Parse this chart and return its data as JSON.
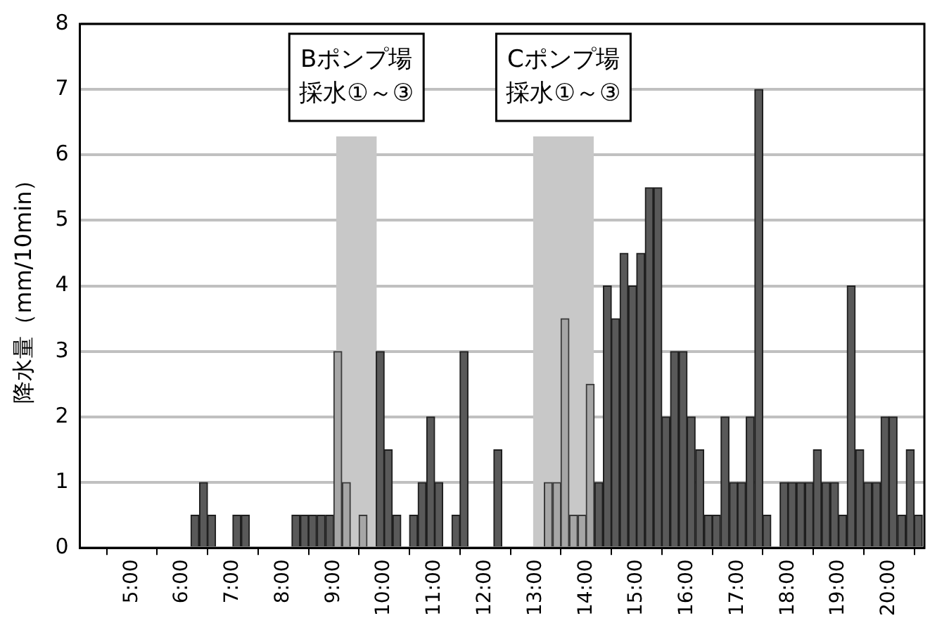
{
  "chart_data": {
    "type": "bar",
    "ylabel": "降水量（mm/10min）",
    "x": [
      4.08,
      4.25,
      4.42,
      4.58,
      4.75,
      4.92,
      5.08,
      5.25,
      5.42,
      5.58,
      5.75,
      5.92,
      6.08,
      6.25,
      6.42,
      6.58,
      6.75,
      6.92,
      7.08,
      7.25,
      7.42,
      7.58,
      7.75,
      7.92,
      8.08,
      8.25,
      8.42,
      8.58,
      8.75,
      8.92,
      9.08,
      9.25,
      9.42,
      9.58,
      9.75,
      9.92,
      10.08,
      10.25,
      10.42,
      10.58,
      10.75,
      10.92,
      11.08,
      11.25,
      11.42,
      11.58,
      11.75,
      11.92,
      12.08,
      12.25,
      12.42,
      12.58,
      12.75,
      12.92,
      13.08,
      13.25,
      13.42,
      13.58,
      13.75,
      13.92,
      14.08,
      14.25,
      14.42,
      14.58,
      14.75,
      14.92,
      15.08,
      15.25,
      15.42,
      15.58,
      15.75,
      15.92,
      16.08,
      16.25,
      16.42,
      16.58,
      16.75,
      16.92,
      17.08,
      17.25,
      17.42,
      17.58,
      17.75,
      17.92,
      18.08,
      18.25,
      18.42,
      18.58,
      18.75,
      18.92,
      19.08,
      19.25,
      19.42,
      19.58,
      19.75,
      19.92,
      20.08,
      20.25,
      20.42,
      20.58
    ],
    "values": [
      0,
      0,
      0,
      0,
      0,
      0,
      0,
      0,
      0,
      0,
      0,
      0,
      0,
      0.5,
      1,
      0.5,
      0,
      0,
      0.5,
      0.5,
      0,
      0,
      0,
      0,
      0,
      0.5,
      0.5,
      0.5,
      0.5,
      0.5,
      3,
      1,
      0,
      0.5,
      0,
      3,
      1.5,
      0.5,
      0,
      0.5,
      1,
      2,
      1,
      0,
      0.5,
      3,
      0,
      0,
      0,
      1.5,
      0,
      0,
      0,
      0,
      0,
      1,
      1,
      3.5,
      0.5,
      0.5,
      2.5,
      1,
      4,
      3.5,
      4.5,
      4,
      4.5,
      5.5,
      5.5,
      2,
      3,
      3,
      2,
      1.5,
      0.5,
      0.5,
      2,
      1,
      1,
      2,
      7,
      0.5,
      0,
      1,
      1,
      1,
      1,
      1.5,
      1,
      1,
      0.5,
      4,
      1.5,
      1,
      1,
      2,
      2,
      0.5,
      1.5,
      0.5
    ],
    "colors": [
      "#595959",
      "#595959",
      "#595959",
      "#595959",
      "#595959",
      "#595959",
      "#595959",
      "#595959",
      "#595959",
      "#595959",
      "#595959",
      "#595959",
      "#595959",
      "#595959",
      "#595959",
      "#595959",
      "#595959",
      "#595959",
      "#595959",
      "#595959",
      "#595959",
      "#595959",
      "#595959",
      "#595959",
      "#595959",
      "#595959",
      "#595959",
      "#595959",
      "#595959",
      "#595959",
      "#a6a6a6",
      "#a6a6a6",
      "#a6a6a6",
      "#a6a6a6",
      "#a6a6a6",
      "#595959",
      "#595959",
      "#595959",
      "#595959",
      "#595959",
      "#595959",
      "#595959",
      "#595959",
      "#595959",
      "#595959",
      "#595959",
      "#595959",
      "#595959",
      "#595959",
      "#595959",
      "#595959",
      "#595959",
      "#595959",
      "#595959",
      "#595959",
      "#a6a6a6",
      "#a6a6a6",
      "#a6a6a6",
      "#a6a6a6",
      "#a6a6a6",
      "#a6a6a6",
      "#595959",
      "#595959",
      "#595959",
      "#595959",
      "#595959",
      "#595959",
      "#595959",
      "#595959",
      "#595959",
      "#595959",
      "#595959",
      "#595959",
      "#595959",
      "#595959",
      "#595959",
      "#595959",
      "#595959",
      "#595959",
      "#595959",
      "#595959",
      "#595959",
      "#595959",
      "#595959",
      "#595959",
      "#595959",
      "#595959",
      "#595959",
      "#595959",
      "#595959",
      "#595959",
      "#595959",
      "#595959",
      "#595959",
      "#595959",
      "#595959",
      "#595959",
      "#595959",
      "#595959",
      "#595959"
    ],
    "xlim": [
      3.97,
      20.7
    ],
    "xticks": [
      {
        "value": 5,
        "label": "5:00"
      },
      {
        "value": 6,
        "label": "6:00"
      },
      {
        "value": 7,
        "label": "7:00"
      },
      {
        "value": 8,
        "label": "8:00"
      },
      {
        "value": 9,
        "label": "9:00"
      },
      {
        "value": 10,
        "label": "10:00"
      },
      {
        "value": 11,
        "label": "11:00"
      },
      {
        "value": 12,
        "label": "12:00"
      },
      {
        "value": 13,
        "label": "13:00"
      },
      {
        "value": 14,
        "label": "14:00"
      },
      {
        "value": 15,
        "label": "15:00"
      },
      {
        "value": 16,
        "label": "16:00"
      },
      {
        "value": 17,
        "label": "17:00"
      },
      {
        "value": 18,
        "label": "18:00"
      },
      {
        "value": 19,
        "label": "19:00"
      },
      {
        "value": 20,
        "label": "20:00"
      }
    ],
    "ylim": [
      0,
      8
    ],
    "yticks": [
      0,
      1,
      2,
      3,
      4,
      5,
      6,
      7,
      8
    ],
    "grid": "y",
    "legend": false,
    "bands": [
      {
        "axis": "x",
        "from": 9.05,
        "to": 9.85,
        "label": "Bポンプ場採水①～③",
        "color": "#c8c8c8"
      },
      {
        "axis": "x",
        "from": 12.95,
        "to": 14.15,
        "label": "Cポンプ場採水①～③",
        "color": "#c8c8c8"
      }
    ]
  }
}
